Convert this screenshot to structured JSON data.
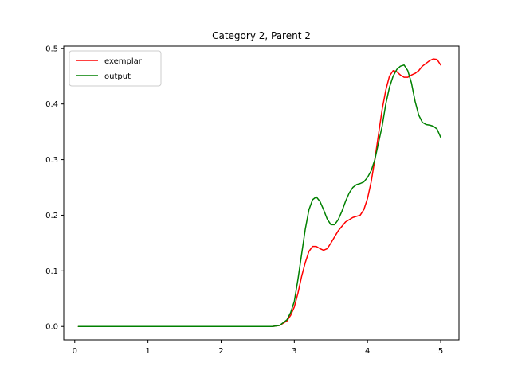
{
  "chart_data": {
    "type": "line",
    "title": "Category 2, Parent 2",
    "xlabel": "",
    "ylabel": "",
    "xlim": [
      -0.15,
      5.25
    ],
    "ylim": [
      -0.024,
      0.504
    ],
    "xticks": [
      0,
      1,
      2,
      3,
      4,
      5
    ],
    "xtick_labels": [
      "0",
      "1",
      "2",
      "3",
      "4",
      "5"
    ],
    "yticks": [
      0.0,
      0.1,
      0.2,
      0.3,
      0.4,
      0.5
    ],
    "ytick_labels": [
      "0.0",
      "0.1",
      "0.2",
      "0.3",
      "0.4",
      "0.5"
    ],
    "grid": false,
    "legend_position": "top-left",
    "series": [
      {
        "name": "exemplar",
        "color": "#ff0000",
        "points": [
          [
            0.05,
            0.0
          ],
          [
            0.5,
            0.0
          ],
          [
            1.0,
            0.0
          ],
          [
            1.5,
            0.0
          ],
          [
            2.0,
            0.0
          ],
          [
            2.5,
            0.0
          ],
          [
            2.7,
            0.0
          ],
          [
            2.8,
            0.002
          ],
          [
            2.9,
            0.01
          ],
          [
            2.95,
            0.02
          ],
          [
            3.0,
            0.035
          ],
          [
            3.05,
            0.06
          ],
          [
            3.1,
            0.09
          ],
          [
            3.15,
            0.115
          ],
          [
            3.2,
            0.135
          ],
          [
            3.25,
            0.144
          ],
          [
            3.3,
            0.144
          ],
          [
            3.35,
            0.14
          ],
          [
            3.4,
            0.137
          ],
          [
            3.45,
            0.14
          ],
          [
            3.5,
            0.15
          ],
          [
            3.6,
            0.172
          ],
          [
            3.7,
            0.188
          ],
          [
            3.8,
            0.196
          ],
          [
            3.9,
            0.2
          ],
          [
            3.95,
            0.21
          ],
          [
            4.0,
            0.23
          ],
          [
            4.05,
            0.26
          ],
          [
            4.1,
            0.3
          ],
          [
            4.15,
            0.345
          ],
          [
            4.2,
            0.39
          ],
          [
            4.25,
            0.425
          ],
          [
            4.3,
            0.45
          ],
          [
            4.35,
            0.46
          ],
          [
            4.4,
            0.458
          ],
          [
            4.45,
            0.452
          ],
          [
            4.5,
            0.448
          ],
          [
            4.55,
            0.448
          ],
          [
            4.6,
            0.452
          ],
          [
            4.65,
            0.455
          ],
          [
            4.7,
            0.46
          ],
          [
            4.75,
            0.468
          ],
          [
            4.8,
            0.473
          ],
          [
            4.85,
            0.478
          ],
          [
            4.9,
            0.481
          ],
          [
            4.95,
            0.48
          ],
          [
            5.0,
            0.47
          ]
        ]
      },
      {
        "name": "output",
        "color": "#008000",
        "points": [
          [
            0.05,
            0.0
          ],
          [
            0.5,
            0.0
          ],
          [
            1.0,
            0.0
          ],
          [
            1.5,
            0.0
          ],
          [
            2.0,
            0.0
          ],
          [
            2.5,
            0.0
          ],
          [
            2.7,
            0.0
          ],
          [
            2.8,
            0.002
          ],
          [
            2.9,
            0.012
          ],
          [
            2.95,
            0.025
          ],
          [
            3.0,
            0.045
          ],
          [
            3.05,
            0.085
          ],
          [
            3.1,
            0.13
          ],
          [
            3.15,
            0.175
          ],
          [
            3.2,
            0.21
          ],
          [
            3.25,
            0.228
          ],
          [
            3.3,
            0.233
          ],
          [
            3.35,
            0.225
          ],
          [
            3.4,
            0.21
          ],
          [
            3.45,
            0.193
          ],
          [
            3.5,
            0.183
          ],
          [
            3.55,
            0.183
          ],
          [
            3.6,
            0.192
          ],
          [
            3.65,
            0.207
          ],
          [
            3.7,
            0.225
          ],
          [
            3.75,
            0.24
          ],
          [
            3.8,
            0.25
          ],
          [
            3.85,
            0.255
          ],
          [
            3.9,
            0.257
          ],
          [
            3.95,
            0.26
          ],
          [
            4.0,
            0.268
          ],
          [
            4.05,
            0.28
          ],
          [
            4.1,
            0.3
          ],
          [
            4.15,
            0.33
          ],
          [
            4.2,
            0.36
          ],
          [
            4.25,
            0.4
          ],
          [
            4.3,
            0.43
          ],
          [
            4.35,
            0.45
          ],
          [
            4.4,
            0.462
          ],
          [
            4.45,
            0.468
          ],
          [
            4.5,
            0.47
          ],
          [
            4.55,
            0.46
          ],
          [
            4.6,
            0.438
          ],
          [
            4.65,
            0.405
          ],
          [
            4.7,
            0.38
          ],
          [
            4.75,
            0.367
          ],
          [
            4.8,
            0.363
          ],
          [
            4.85,
            0.362
          ],
          [
            4.9,
            0.36
          ],
          [
            4.95,
            0.355
          ],
          [
            5.0,
            0.34
          ]
        ]
      }
    ]
  }
}
